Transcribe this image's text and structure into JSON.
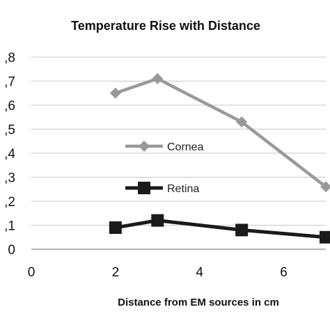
{
  "chart_data": {
    "type": "line",
    "title": "Temperature Rise with Distance",
    "xlabel": "Distance from EM sources in cm",
    "ylabel": "",
    "xlim": [
      0,
      7
    ],
    "ylim": [
      0,
      0.8
    ],
    "x_ticks": [
      0,
      2,
      4,
      6
    ],
    "x_tick_labels": [
      "0",
      "2",
      "4",
      "6"
    ],
    "y_ticks": [
      0,
      0.1,
      0.2,
      0.3,
      0.4,
      0.5,
      0.6,
      0.7,
      0.8
    ],
    "y_tick_labels": [
      "0",
      ",1",
      ",2",
      ",3",
      ",4",
      ",5",
      ",6",
      ",7",
      ",8"
    ],
    "grid": true,
    "legend_position": "inside-center",
    "series": [
      {
        "name": "Cornea",
        "color": "#999999",
        "marker": "diamond",
        "x": [
          2,
          3,
          5,
          7
        ],
        "y": [
          0.65,
          0.71,
          0.53,
          0.26
        ]
      },
      {
        "name": "Retina",
        "color": "#1a1a1a",
        "marker": "square",
        "x": [
          2,
          3,
          5,
          7
        ],
        "y": [
          0.09,
          0.12,
          0.08,
          0.05
        ]
      }
    ]
  }
}
